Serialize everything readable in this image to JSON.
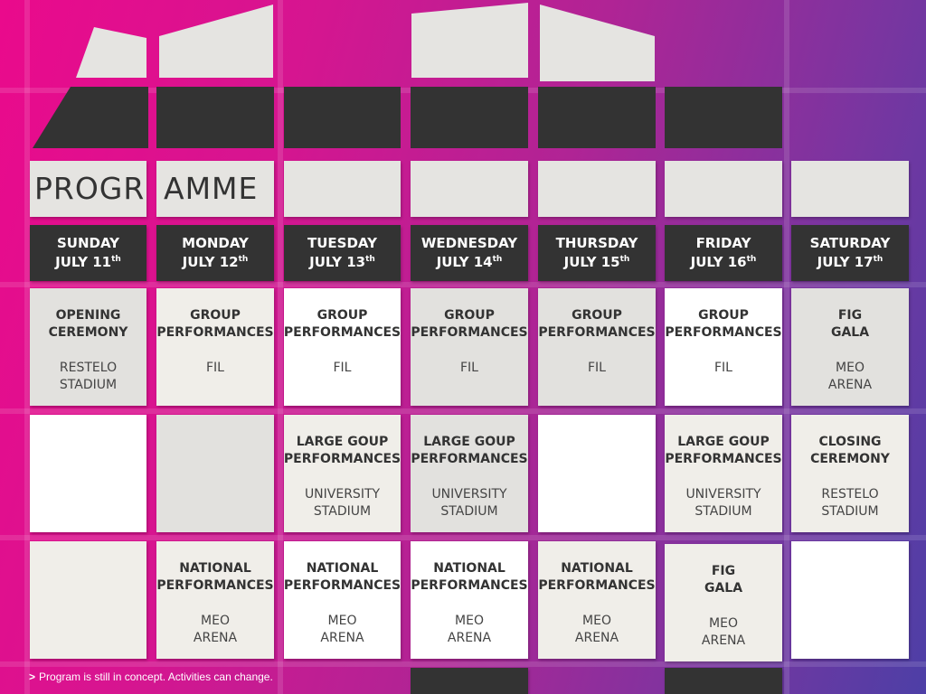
{
  "title": {
    "part1": "PROGR",
    "part2": "AMME"
  },
  "days": [
    {
      "day": "SUNDAY",
      "date": "JULY 11",
      "suffix": "th"
    },
    {
      "day": "MONDAY",
      "date": "JULY 12",
      "suffix": "th"
    },
    {
      "day": "TUESDAY",
      "date": "JULY 13",
      "suffix": "th"
    },
    {
      "day": "WEDNESDAY",
      "date": "JULY 14",
      "suffix": "th"
    },
    {
      "day": "THURSDAY",
      "date": "JULY 15",
      "suffix": "th"
    },
    {
      "day": "FRIDAY",
      "date": "JULY 16",
      "suffix": "th"
    },
    {
      "day": "SATURDAY",
      "date": "JULY 17",
      "suffix": "th"
    }
  ],
  "rows": [
    [
      {
        "event": "OPENING\nCEREMONY",
        "venue": "RESTELO\nSTADIUM"
      },
      {
        "event": "GROUP\nPERFORMANCES",
        "venue": "FIL"
      },
      {
        "event": "GROUP\nPERFORMANCES",
        "venue": "FIL"
      },
      {
        "event": "GROUP\nPERFORMANCES",
        "venue": "FIL"
      },
      {
        "event": "GROUP\nPERFORMANCES",
        "venue": "FIL"
      },
      {
        "event": "GROUP\nPERFORMANCES",
        "venue": "FIL"
      },
      {
        "event": "FIG\nGALA",
        "venue": "MEO\nARENA"
      }
    ],
    [
      {
        "event": "",
        "venue": ""
      },
      {
        "event": "",
        "venue": ""
      },
      {
        "event": "LARGE GOUP\nPERFORMANCES",
        "venue": "UNIVERSITY\nSTADIUM"
      },
      {
        "event": "LARGE GOUP\nPERFORMANCES",
        "venue": "UNIVERSITY\nSTADIUM"
      },
      {
        "event": "",
        "venue": ""
      },
      {
        "event": "LARGE GOUP\nPERFORMANCES",
        "venue": "UNIVERSITY\nSTADIUM"
      },
      {
        "event": "CLOSING\nCEREMONY",
        "venue": "RESTELO\nSTADIUM"
      }
    ],
    [
      {
        "event": "",
        "venue": ""
      },
      {
        "event": "NATIONAL\nPERFORMANCES",
        "venue": "MEO\nARENA"
      },
      {
        "event": "NATIONAL\nPERFORMANCES",
        "venue": "MEO\nARENA"
      },
      {
        "event": "NATIONAL\nPERFORMANCES",
        "venue": "MEO\nARENA"
      },
      {
        "event": "NATIONAL\nPERFORMANCES",
        "venue": "MEO\nARENA"
      },
      {
        "event": "FIG\nGALA",
        "venue": "MEO\nARENA"
      },
      {
        "event": "",
        "venue": ""
      }
    ]
  ],
  "footnote": {
    "arrow": ">",
    "text": "Program is still in concept. Activities can change."
  },
  "colors": {
    "tile_dark": "#333333",
    "tile_light": "#e5e4e1",
    "bg_start": "#ea0a8c",
    "bg_end": "#4d3fa6"
  }
}
